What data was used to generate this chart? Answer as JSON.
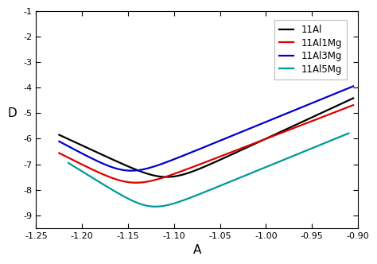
{
  "xlabel": "A",
  "ylabel": "D",
  "xlim": [
    -1.25,
    -0.9
  ],
  "ylim": [
    -9.5,
    -1
  ],
  "yticks": [
    -9,
    -8,
    -7,
    -6,
    -5,
    -4,
    -3,
    -2,
    -1
  ],
  "xticks": [
    -1.25,
    -1.2,
    -1.15,
    -1.1,
    -1.05,
    -1.0,
    -0.95,
    -0.9
  ],
  "legend_labels": [
    "11Al",
    "11Al1Mg",
    "11Al3Mg",
    "11Al5Mg"
  ],
  "line_colors": [
    "#000000",
    "#dd0000",
    "#0000cc",
    "#009999"
  ],
  "line_width": 1.6,
  "curves": [
    {
      "label": "11Al",
      "color": "#000000",
      "E_corr": -1.108,
      "log_i_corr": -7.8,
      "ba": 0.06,
      "bc": 0.06,
      "x_cat_start": -1.225,
      "x_an_end": -0.905
    },
    {
      "label": "11Al1Mg",
      "color": "#dd0000",
      "E_corr": -1.145,
      "log_i_corr": -8.02,
      "ba": 0.072,
      "bc": 0.055,
      "x_cat_start": -1.225,
      "x_an_end": -0.905
    },
    {
      "label": "11Al3Mg",
      "color": "#0000cc",
      "E_corr": -1.15,
      "log_i_corr": -7.55,
      "ba": 0.068,
      "bc": 0.052,
      "x_cat_start": -1.225,
      "x_an_end": -0.905
    },
    {
      "label": "11Al5Mg",
      "color": "#009999",
      "E_corr": -1.125,
      "log_i_corr": -8.95,
      "ba": 0.068,
      "bc": 0.045,
      "x_cat_start": -1.215,
      "x_an_end": -0.91
    }
  ]
}
